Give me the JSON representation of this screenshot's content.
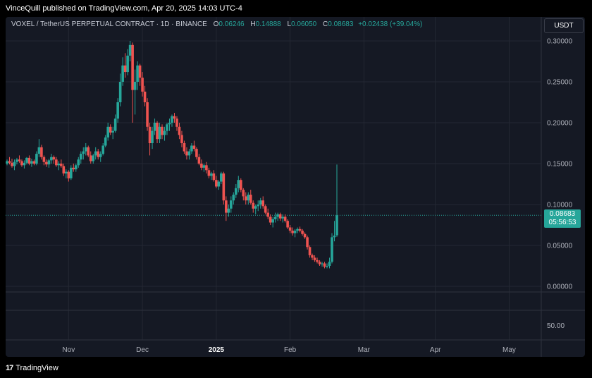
{
  "header": {
    "published_text": "VinceQuill published on TradingView.com, Apr 20, 2025 14:03 UTC-4"
  },
  "legend": {
    "symbol": "VOXEL / TetherUS PERPETUAL CONTRACT · 1D · BINANCE",
    "open_label": "O",
    "open": "0.06246",
    "high_label": "H",
    "high": "0.14888",
    "low_label": "L",
    "low": "0.06050",
    "close_label": "C",
    "close": "0.08683",
    "change": "+0.02438 (+39.04%)"
  },
  "currency_button": "USDT",
  "price_badge": {
    "price": "0.08683",
    "countdown": "05:56:53"
  },
  "footer": {
    "logo_mark": "17",
    "logo_text": "TradingView"
  },
  "colors": {
    "up": "#26a69a",
    "down": "#ef5350",
    "background": "#151924",
    "grid": "#242833",
    "text": "#b2b5be"
  },
  "chart_data": {
    "type": "candlestick",
    "y_axis_ticks": [
      "0.30000",
      "0.25000",
      "0.20000",
      "0.15000",
      "0.10000",
      "0.05000",
      "0.00000"
    ],
    "ylim": [
      0,
      0.3
    ],
    "volume_axis_tick": "50.00",
    "x_axis_ticks": [
      "Nov",
      "Dec",
      "2025",
      "Feb",
      "Mar",
      "Apr",
      "May"
    ],
    "current_price": 0.08683,
    "x_range": [
      0,
      199
    ],
    "x_tick_positions": [
      25,
      55,
      85,
      115,
      145,
      174,
      204
    ],
    "candles": [
      [
        0.15,
        0.155,
        0.148,
        0.153
      ],
      [
        0.153,
        0.158,
        0.149,
        0.151
      ],
      [
        0.151,
        0.156,
        0.145,
        0.147
      ],
      [
        0.147,
        0.155,
        0.142,
        0.152
      ],
      [
        0.152,
        0.157,
        0.149,
        0.155
      ],
      [
        0.155,
        0.16,
        0.151,
        0.153
      ],
      [
        0.153,
        0.155,
        0.146,
        0.148
      ],
      [
        0.148,
        0.154,
        0.144,
        0.151
      ],
      [
        0.151,
        0.158,
        0.149,
        0.157
      ],
      [
        0.157,
        0.16,
        0.148,
        0.15
      ],
      [
        0.15,
        0.156,
        0.146,
        0.153
      ],
      [
        0.153,
        0.155,
        0.148,
        0.15
      ],
      [
        0.15,
        0.165,
        0.148,
        0.162
      ],
      [
        0.162,
        0.18,
        0.158,
        0.17
      ],
      [
        0.17,
        0.173,
        0.155,
        0.158
      ],
      [
        0.158,
        0.16,
        0.148,
        0.152
      ],
      [
        0.152,
        0.155,
        0.146,
        0.149
      ],
      [
        0.149,
        0.156,
        0.145,
        0.154
      ],
      [
        0.154,
        0.162,
        0.15,
        0.158
      ],
      [
        0.158,
        0.16,
        0.15,
        0.155
      ],
      [
        0.155,
        0.158,
        0.146,
        0.148
      ],
      [
        0.148,
        0.153,
        0.142,
        0.15
      ],
      [
        0.15,
        0.155,
        0.145,
        0.147
      ],
      [
        0.147,
        0.15,
        0.135,
        0.138
      ],
      [
        0.138,
        0.143,
        0.132,
        0.14
      ],
      [
        0.14,
        0.142,
        0.128,
        0.132
      ],
      [
        0.132,
        0.148,
        0.13,
        0.145
      ],
      [
        0.145,
        0.15,
        0.14,
        0.143
      ],
      [
        0.143,
        0.15,
        0.14,
        0.148
      ],
      [
        0.148,
        0.158,
        0.145,
        0.155
      ],
      [
        0.155,
        0.165,
        0.15,
        0.162
      ],
      [
        0.162,
        0.17,
        0.155,
        0.165
      ],
      [
        0.165,
        0.175,
        0.16,
        0.17
      ],
      [
        0.17,
        0.172,
        0.158,
        0.16
      ],
      [
        0.16,
        0.165,
        0.15,
        0.153
      ],
      [
        0.153,
        0.162,
        0.15,
        0.16
      ],
      [
        0.16,
        0.17,
        0.155,
        0.165
      ],
      [
        0.165,
        0.168,
        0.155,
        0.158
      ],
      [
        0.158,
        0.165,
        0.152,
        0.162
      ],
      [
        0.162,
        0.175,
        0.16,
        0.172
      ],
      [
        0.172,
        0.185,
        0.17,
        0.182
      ],
      [
        0.182,
        0.2,
        0.178,
        0.195
      ],
      [
        0.195,
        0.198,
        0.185,
        0.188
      ],
      [
        0.188,
        0.195,
        0.18,
        0.19
      ],
      [
        0.19,
        0.21,
        0.188,
        0.205
      ],
      [
        0.205,
        0.23,
        0.2,
        0.225
      ],
      [
        0.225,
        0.26,
        0.22,
        0.25
      ],
      [
        0.25,
        0.28,
        0.245,
        0.27
      ],
      [
        0.27,
        0.285,
        0.255,
        0.262
      ],
      [
        0.262,
        0.29,
        0.258,
        0.282
      ],
      [
        0.282,
        0.3,
        0.275,
        0.295
      ],
      [
        0.295,
        0.298,
        0.2,
        0.24
      ],
      [
        0.24,
        0.265,
        0.21,
        0.25
      ],
      [
        0.25,
        0.275,
        0.24,
        0.27
      ],
      [
        0.27,
        0.272,
        0.245,
        0.255
      ],
      [
        0.255,
        0.262,
        0.232,
        0.238
      ],
      [
        0.238,
        0.245,
        0.22,
        0.225
      ],
      [
        0.225,
        0.23,
        0.19,
        0.195
      ],
      [
        0.195,
        0.2,
        0.16,
        0.175
      ],
      [
        0.175,
        0.195,
        0.168,
        0.19
      ],
      [
        0.19,
        0.205,
        0.185,
        0.2
      ],
      [
        0.2,
        0.202,
        0.175,
        0.18
      ],
      [
        0.18,
        0.2,
        0.175,
        0.195
      ],
      [
        0.195,
        0.198,
        0.18,
        0.185
      ],
      [
        0.185,
        0.195,
        0.178,
        0.19
      ],
      [
        0.19,
        0.2,
        0.185,
        0.198
      ],
      [
        0.198,
        0.205,
        0.19,
        0.2
      ],
      [
        0.2,
        0.21,
        0.195,
        0.208
      ],
      [
        0.208,
        0.212,
        0.2,
        0.205
      ],
      [
        0.205,
        0.208,
        0.19,
        0.195
      ],
      [
        0.195,
        0.2,
        0.18,
        0.185
      ],
      [
        0.185,
        0.19,
        0.17,
        0.175
      ],
      [
        0.175,
        0.178,
        0.162,
        0.165
      ],
      [
        0.165,
        0.17,
        0.155,
        0.16
      ],
      [
        0.16,
        0.168,
        0.155,
        0.165
      ],
      [
        0.165,
        0.175,
        0.162,
        0.172
      ],
      [
        0.172,
        0.178,
        0.165,
        0.168
      ],
      [
        0.168,
        0.17,
        0.155,
        0.158
      ],
      [
        0.158,
        0.162,
        0.148,
        0.15
      ],
      [
        0.15,
        0.155,
        0.142,
        0.145
      ],
      [
        0.145,
        0.15,
        0.14,
        0.148
      ],
      [
        0.148,
        0.152,
        0.138,
        0.142
      ],
      [
        0.142,
        0.145,
        0.132,
        0.135
      ],
      [
        0.135,
        0.14,
        0.13,
        0.138
      ],
      [
        0.138,
        0.142,
        0.128,
        0.13
      ],
      [
        0.13,
        0.135,
        0.12,
        0.122
      ],
      [
        0.122,
        0.13,
        0.118,
        0.128
      ],
      [
        0.128,
        0.14,
        0.125,
        0.138
      ],
      [
        0.138,
        0.14,
        0.1,
        0.105
      ],
      [
        0.105,
        0.11,
        0.08,
        0.09
      ],
      [
        0.09,
        0.1,
        0.085,
        0.095
      ],
      [
        0.095,
        0.11,
        0.09,
        0.105
      ],
      [
        0.105,
        0.115,
        0.1,
        0.112
      ],
      [
        0.112,
        0.125,
        0.108,
        0.12
      ],
      [
        0.12,
        0.135,
        0.115,
        0.13
      ],
      [
        0.13,
        0.132,
        0.115,
        0.118
      ],
      [
        0.118,
        0.12,
        0.105,
        0.11
      ],
      [
        0.11,
        0.115,
        0.1,
        0.105
      ],
      [
        0.105,
        0.115,
        0.1,
        0.112
      ],
      [
        0.112,
        0.118,
        0.1,
        0.102
      ],
      [
        0.102,
        0.105,
        0.09,
        0.095
      ],
      [
        0.095,
        0.1,
        0.088,
        0.098
      ],
      [
        0.098,
        0.105,
        0.092,
        0.1
      ],
      [
        0.1,
        0.108,
        0.095,
        0.105
      ],
      [
        0.105,
        0.11,
        0.095,
        0.098
      ],
      [
        0.098,
        0.1,
        0.088,
        0.09
      ],
      [
        0.09,
        0.095,
        0.082,
        0.085
      ],
      [
        0.085,
        0.088,
        0.075,
        0.078
      ],
      [
        0.078,
        0.085,
        0.072,
        0.082
      ],
      [
        0.082,
        0.09,
        0.078,
        0.085
      ],
      [
        0.085,
        0.09,
        0.08,
        0.088
      ],
      [
        0.088,
        0.09,
        0.08,
        0.083
      ],
      [
        0.083,
        0.088,
        0.078,
        0.085
      ],
      [
        0.085,
        0.088,
        0.078,
        0.08
      ],
      [
        0.08,
        0.082,
        0.07,
        0.072
      ],
      [
        0.072,
        0.075,
        0.065,
        0.068
      ],
      [
        0.068,
        0.072,
        0.062,
        0.065
      ],
      [
        0.065,
        0.07,
        0.06,
        0.068
      ],
      [
        0.068,
        0.072,
        0.065,
        0.07
      ],
      [
        0.07,
        0.073,
        0.066,
        0.068
      ],
      [
        0.068,
        0.07,
        0.062,
        0.064
      ],
      [
        0.064,
        0.066,
        0.058,
        0.06
      ],
      [
        0.06,
        0.062,
        0.045,
        0.048
      ],
      [
        0.048,
        0.05,
        0.035,
        0.038
      ],
      [
        0.038,
        0.04,
        0.032,
        0.035
      ],
      [
        0.035,
        0.038,
        0.03,
        0.032
      ],
      [
        0.032,
        0.035,
        0.028,
        0.03
      ],
      [
        0.03,
        0.032,
        0.025,
        0.027
      ],
      [
        0.027,
        0.03,
        0.024,
        0.028
      ],
      [
        0.028,
        0.03,
        0.022,
        0.024
      ],
      [
        0.024,
        0.028,
        0.022,
        0.025
      ],
      [
        0.025,
        0.035,
        0.022,
        0.03
      ],
      [
        0.03,
        0.065,
        0.028,
        0.06
      ],
      [
        0.06,
        0.08,
        0.055,
        0.062
      ],
      [
        0.06246,
        0.14888,
        0.0605,
        0.08683
      ]
    ]
  }
}
